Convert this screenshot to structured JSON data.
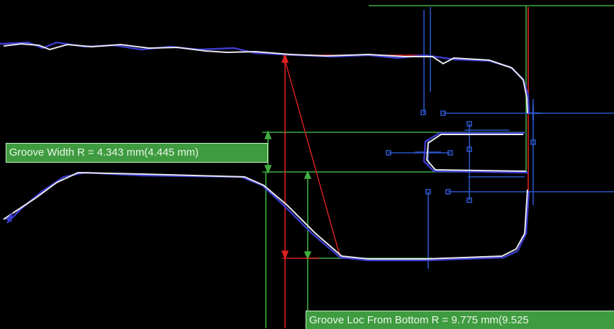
{
  "measurements": {
    "groove_width": {
      "text": "Groove Width R = 4.343 mm(4.445 mm)",
      "measured_mm": 4.343,
      "nominal_mm": 4.445
    },
    "groove_loc": {
      "text": "Groove Loc From Bottom R = 9.775 mm(9.525",
      "measured_mm": 9.775,
      "nominal_mm": 9.525
    }
  },
  "colors": {
    "background": "#000000",
    "profile_trace": "#e8e8f0",
    "nominal_trace": "#3c3ccf",
    "dimension_green": "#3fae3f",
    "dimension_red": "#e02020",
    "construction_blue": "#2a55c8",
    "label_bg": "#3f9b3f",
    "label_text": "#e9f6e9"
  }
}
